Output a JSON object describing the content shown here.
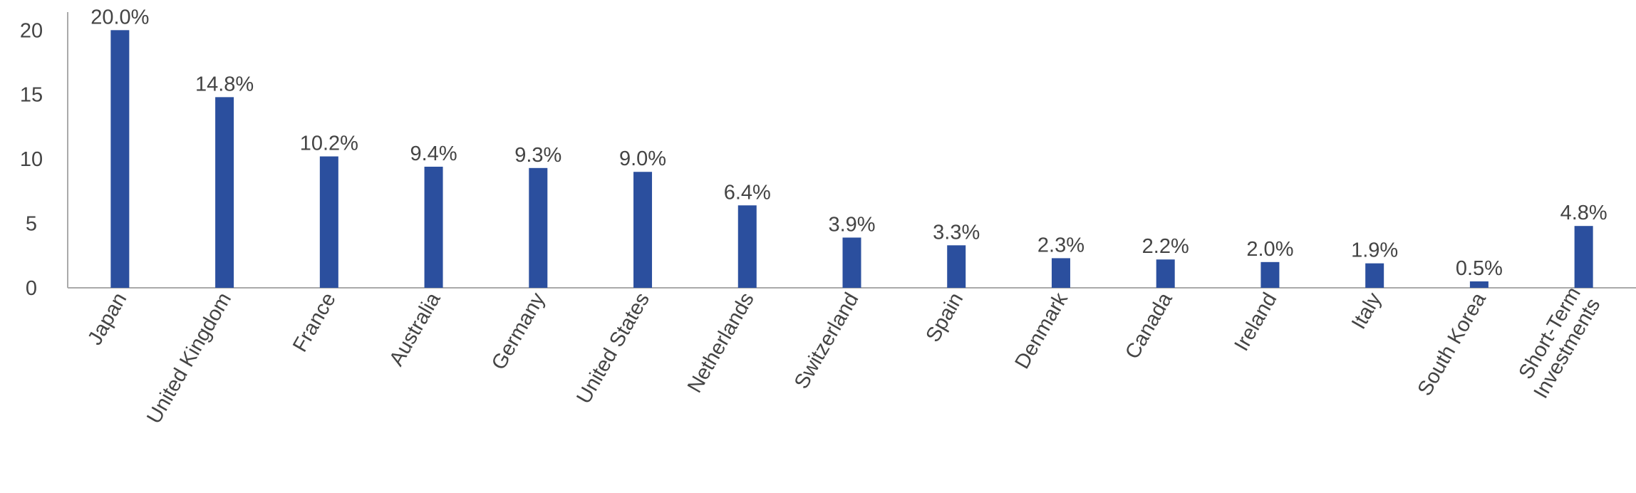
{
  "chart_data": {
    "type": "bar",
    "categories": [
      "Japan",
      "United Kingdom",
      "France",
      "Australia",
      "Germany",
      "United States",
      "Netherlands",
      "Switzerland",
      "Spain",
      "Denmark",
      "Canada",
      "Ireland",
      "Italy",
      "South Korea",
      "Short-Term Investments"
    ],
    "values": [
      20.0,
      14.8,
      10.2,
      9.4,
      9.3,
      9.0,
      6.4,
      3.9,
      3.3,
      2.3,
      2.2,
      2.0,
      1.9,
      0.5,
      4.8
    ],
    "value_labels": [
      "20.0%",
      "14.8%",
      "10.2%",
      "9.4%",
      "9.3%",
      "9.0%",
      "6.4%",
      "3.9%",
      "3.3%",
      "2.3%",
      "2.2%",
      "2.0%",
      "1.9%",
      "0.5%",
      "4.8%"
    ],
    "color": "#2b4f9e",
    "ylim": [
      0,
      21.4
    ],
    "yticks": [
      0,
      5,
      10,
      15,
      20
    ],
    "grid": false
  }
}
